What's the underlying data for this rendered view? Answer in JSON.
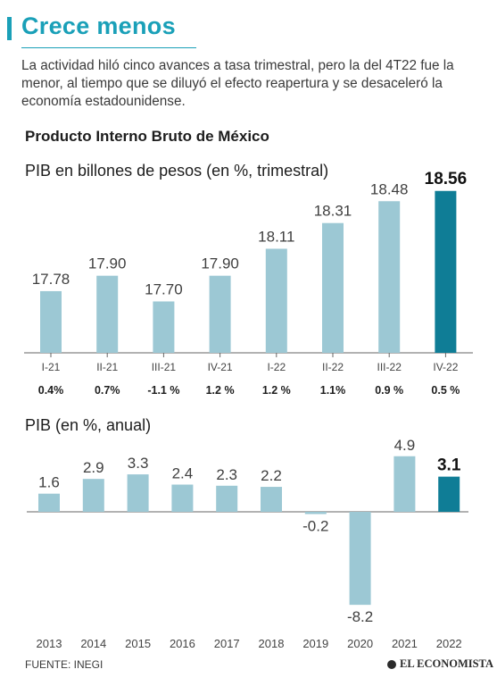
{
  "header": {
    "title": "Crece menos",
    "intro": "La actividad hiló cinco avances a tasa trimestral, pero la del 4T22 fue la menor, al tiempo que se diluyó el efecto reapertura y se desaceleró la economía estadounidense.",
    "subtitle": "Producto Interno Bruto de México"
  },
  "footer": {
    "source": "FUENTE: INEGI",
    "brand": "EL ECONOMISTA"
  },
  "colors": {
    "bar": "#9cc8d4",
    "highlight": "#0f7d96",
    "accent": "#1aa0b8"
  },
  "chart_data": [
    {
      "type": "bar",
      "title": "PIB en billones de pesos  (en %, trimestral)",
      "categories": [
        "I-21",
        "II-21",
        "III-21",
        "IV-21",
        "I-22",
        "II-22",
        "III-22",
        "IV-22"
      ],
      "values": [
        17.78,
        17.9,
        17.7,
        17.9,
        18.11,
        18.31,
        18.48,
        18.56
      ],
      "value_labels": [
        "17.78",
        "17.90",
        "17.70",
        "17.90",
        "18.11",
        "18.31",
        "18.48",
        "18.56"
      ],
      "quarterly_change": [
        "0.4%",
        "0.7%",
        "-1.1 %",
        "1.2 %",
        "1.2 %",
        "1.1%",
        "0.9 %",
        "0.5 %"
      ],
      "highlight_index": 7,
      "ylim": [
        17.3,
        18.6
      ]
    },
    {
      "type": "bar",
      "title": "PIB (en %, anual)",
      "categories": [
        "2013",
        "2014",
        "2015",
        "2016",
        "2017",
        "2018",
        "2019",
        "2020",
        "2021",
        "2022"
      ],
      "values": [
        1.6,
        2.9,
        3.3,
        2.4,
        2.3,
        2.2,
        -0.2,
        -8.2,
        4.9,
        3.1
      ],
      "value_labels": [
        "1.6",
        "2.9",
        "3.3",
        "2.4",
        "2.3",
        "2.2",
        "-0.2",
        "-8.2",
        "4.9",
        "3.1"
      ],
      "highlight_index": 9,
      "ylim": [
        -8.2,
        4.9
      ]
    }
  ]
}
